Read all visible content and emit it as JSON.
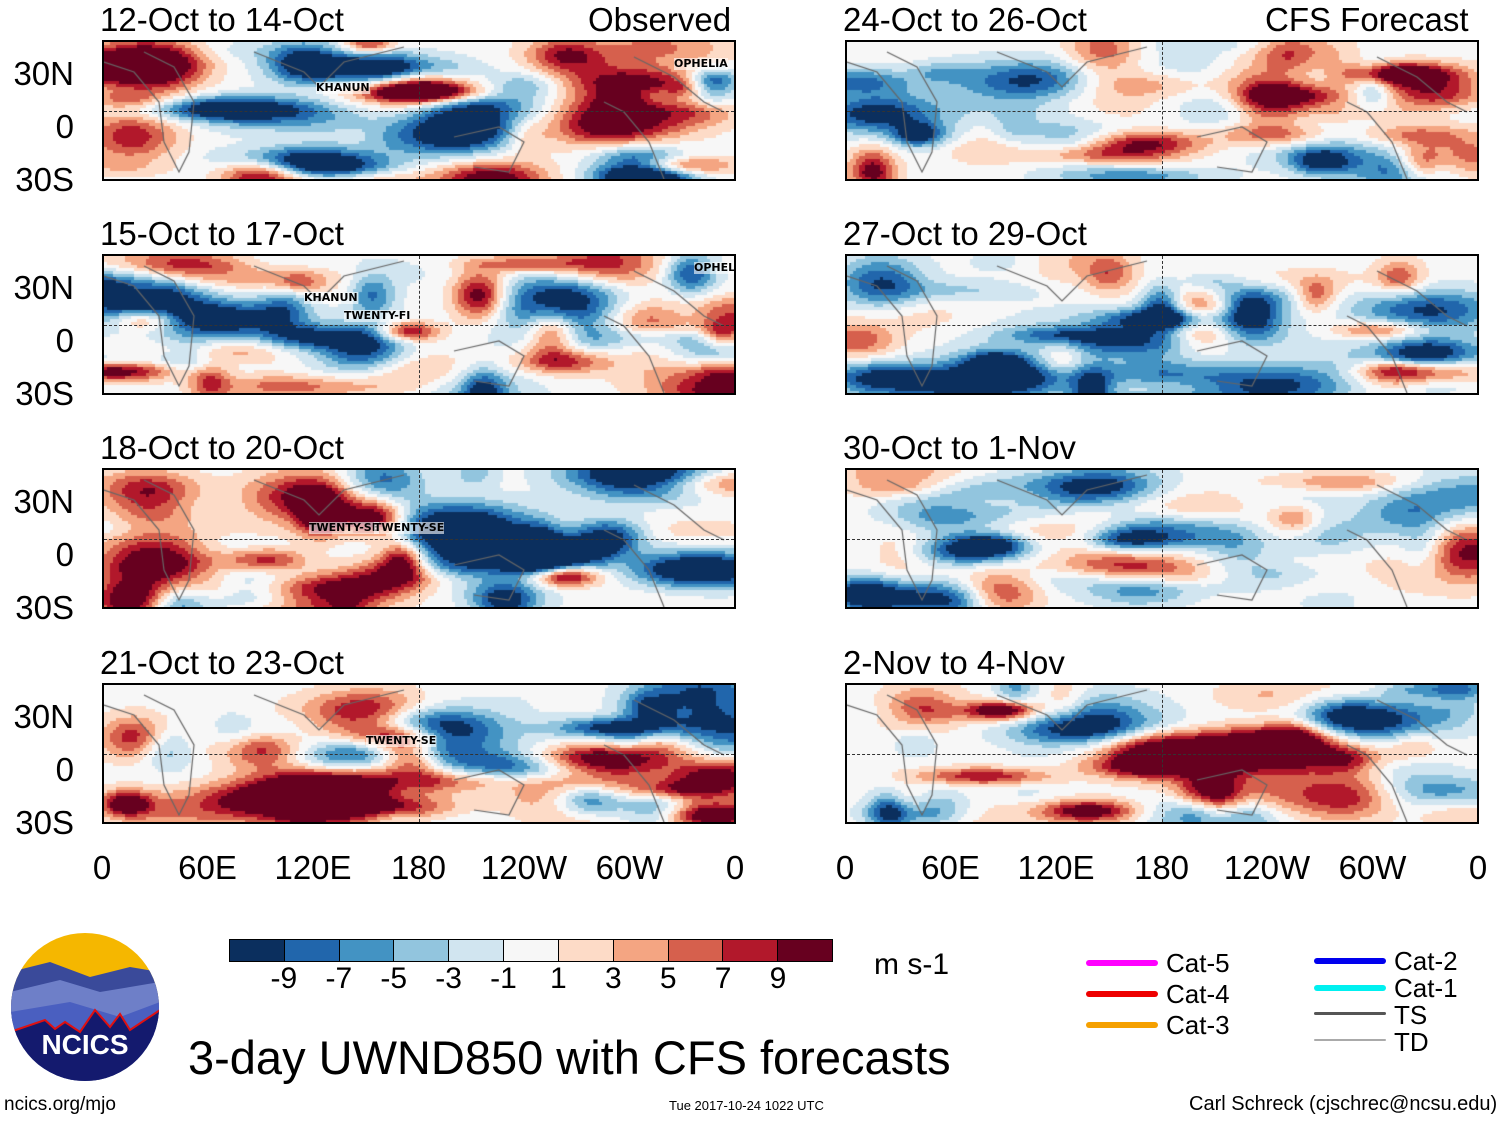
{
  "title": "3-day UWND850 with CFS forecasts",
  "timestamp": "Tue 2017-10-24 1022 UTC",
  "site": "ncics.org/mjo",
  "credit": "Carl Schreck (cjschrec@ncsu.edu)",
  "logo_text": "NCICS",
  "column_labels": {
    "left": "Observed",
    "right": "CFS Forecast"
  },
  "lat_labels": [
    "30N",
    "0",
    "30S"
  ],
  "lon_labels": [
    "0",
    "60E",
    "120E",
    "180",
    "120W",
    "60W",
    "0"
  ],
  "panels": [
    {
      "period": "12-Oct to 14-Oct",
      "kind": "observed",
      "storms": [
        "KHANUN",
        "OPHELIA"
      ]
    },
    {
      "period": "15-Oct to 17-Oct",
      "kind": "observed",
      "storms": [
        "KHANUN",
        "TWENTY-FI",
        "OPHELIA"
      ]
    },
    {
      "period": "18-Oct to 20-Oct",
      "kind": "observed",
      "storms": [
        "TWENTY-SE",
        "TWENTY-SE"
      ]
    },
    {
      "period": "21-Oct to 23-Oct",
      "kind": "observed",
      "storms": [
        "TWENTY-SE"
      ]
    },
    {
      "period": "24-Oct to 26-Oct",
      "kind": "forecast",
      "storms": []
    },
    {
      "period": "27-Oct to 29-Oct",
      "kind": "forecast",
      "storms": []
    },
    {
      "period": "30-Oct to 1-Nov",
      "kind": "forecast",
      "storms": []
    },
    {
      "period": "2-Nov to 4-Nov",
      "kind": "forecast",
      "storms": []
    }
  ],
  "colorbar": {
    "unit": "m s-1",
    "labels": [
      "-9",
      "-7",
      "-5",
      "-3",
      "-1",
      "1",
      "3",
      "5",
      "7",
      "9"
    ],
    "colors": [
      "#0b2f5e",
      "#2166ac",
      "#4393c3",
      "#92c5de",
      "#d1e5f0",
      "#f7f7f7",
      "#fddbc7",
      "#f4a582",
      "#d6604d",
      "#b2182b",
      "#67001f"
    ]
  },
  "legend": [
    {
      "label": "Cat-5",
      "color": "#ff00ff"
    },
    {
      "label": "Cat-4",
      "color": "#ee0000"
    },
    {
      "label": "Cat-3",
      "color": "#f5a000"
    },
    {
      "label": "Cat-2",
      "color": "#0000ee"
    },
    {
      "label": "Cat-1",
      "color": "#00f0f0"
    },
    {
      "label": "TS",
      "color": "#555555"
    },
    {
      "label": "TD",
      "color": "#aaaaaa"
    }
  ]
}
